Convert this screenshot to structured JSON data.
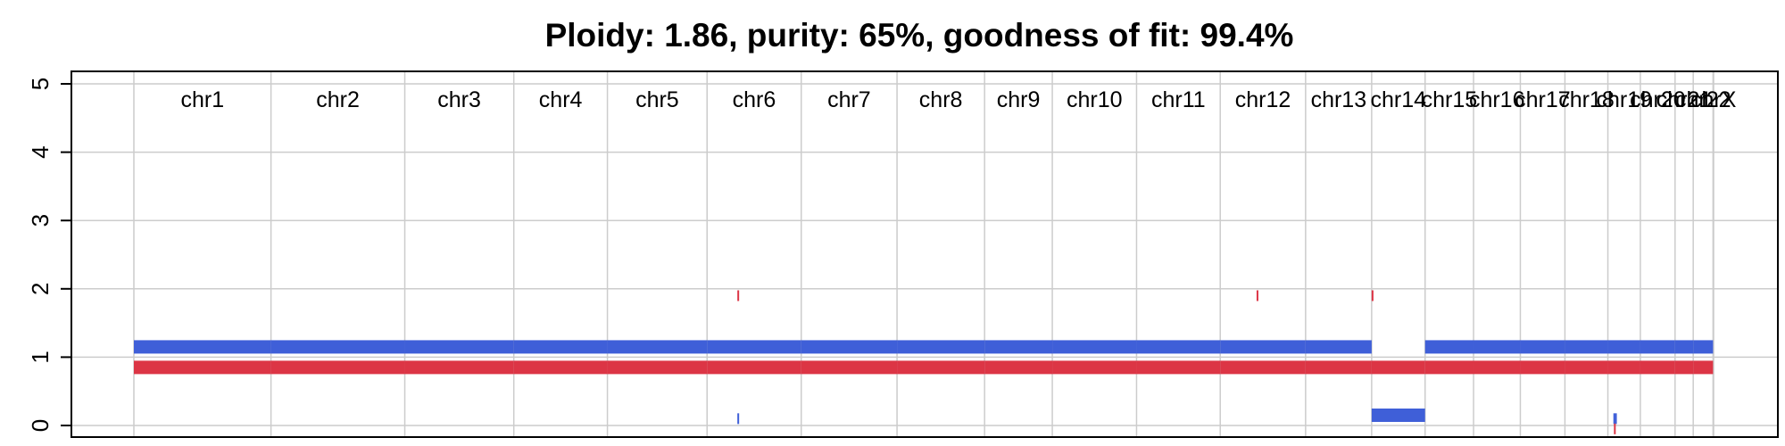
{
  "chart_data": {
    "type": "copy-number-profile",
    "title": "Ploidy: 1.86, purity: 65%, goodness of fit: 99.4%",
    "ylim": [
      0,
      5
    ],
    "yticks": [
      "0",
      "1",
      "2",
      "3",
      "4",
      "5"
    ],
    "grid": true,
    "colors": {
      "major": "#3f5fd8",
      "minor": "#dc3545",
      "grid": "#cccccc",
      "axis": "#000000"
    },
    "chromosomes": [
      {
        "name": "chr1",
        "length": 249
      },
      {
        "name": "chr2",
        "length": 243
      },
      {
        "name": "chr3",
        "length": 198
      },
      {
        "name": "chr4",
        "length": 170
      },
      {
        "name": "chr5",
        "length": 181
      },
      {
        "name": "chr6",
        "length": 171
      },
      {
        "name": "chr7",
        "length": 174
      },
      {
        "name": "chr8",
        "length": 159
      },
      {
        "name": "chr9",
        "length": 123
      },
      {
        "name": "chr10",
        "length": 153
      },
      {
        "name": "chr11",
        "length": 152
      },
      {
        "name": "chr12",
        "length": 155
      },
      {
        "name": "chr13",
        "length": 120
      },
      {
        "name": "chr14",
        "length": 97
      },
      {
        "name": "chr15",
        "length": 88
      },
      {
        "name": "chr16",
        "length": 85
      },
      {
        "name": "chr17",
        "length": 81
      },
      {
        "name": "chr18",
        "length": 78
      },
      {
        "name": "chr19",
        "length": 59
      },
      {
        "name": "chr20",
        "length": 63
      },
      {
        "name": "chr21",
        "length": 33
      },
      {
        "name": "chr22",
        "length": 36
      },
      {
        "name": "chrX",
        "length": 1
      }
    ],
    "series": [
      {
        "role": "major",
        "segments": [
          {
            "chr": "chr1",
            "start": 0,
            "end": 249,
            "value": 1.15
          },
          {
            "chr": "chr2",
            "start": 0,
            "end": 243,
            "value": 1.15
          },
          {
            "chr": "chr3",
            "start": 0,
            "end": 198,
            "value": 1.15
          },
          {
            "chr": "chr4",
            "start": 0,
            "end": 170,
            "value": 1.15
          },
          {
            "chr": "chr5",
            "start": 0,
            "end": 181,
            "value": 1.15
          },
          {
            "chr": "chr6",
            "start": 0,
            "end": 171,
            "value": 1.15
          },
          {
            "chr": "chr7",
            "start": 0,
            "end": 174,
            "value": 1.15
          },
          {
            "chr": "chr8",
            "start": 0,
            "end": 159,
            "value": 1.15
          },
          {
            "chr": "chr9",
            "start": 0,
            "end": 123,
            "value": 1.15
          },
          {
            "chr": "chr10",
            "start": 0,
            "end": 153,
            "value": 1.15
          },
          {
            "chr": "chr11",
            "start": 0,
            "end": 152,
            "value": 1.15
          },
          {
            "chr": "chr12",
            "start": 0,
            "end": 155,
            "value": 1.15
          },
          {
            "chr": "chr13",
            "start": 0,
            "end": 120,
            "value": 1.15
          },
          {
            "chr": "chr14",
            "start": 0,
            "end": 97,
            "value": 0.15
          },
          {
            "chr": "chr15",
            "start": 0,
            "end": 88,
            "value": 1.15
          },
          {
            "chr": "chr16",
            "start": 0,
            "end": 85,
            "value": 1.15
          },
          {
            "chr": "chr17",
            "start": 0,
            "end": 81,
            "value": 1.15
          },
          {
            "chr": "chr18",
            "start": 0,
            "end": 78,
            "value": 1.15
          },
          {
            "chr": "chr19",
            "start": 0,
            "end": 59,
            "value": 1.15
          },
          {
            "chr": "chr20",
            "start": 0,
            "end": 63,
            "value": 1.15
          },
          {
            "chr": "chr21",
            "start": 0,
            "end": 33,
            "value": 1.15
          },
          {
            "chr": "chr22",
            "start": 0,
            "end": 36,
            "value": 1.15
          },
          {
            "chr": "chr6",
            "start": 55,
            "end": 56,
            "value": 0.1
          },
          {
            "chr": "chr19",
            "start": 10,
            "end": 11,
            "value": 0.1
          },
          {
            "chr": "chr19",
            "start": 13,
            "end": 14,
            "value": 0.1
          }
        ]
      },
      {
        "role": "minor",
        "segments": [
          {
            "chr": "chr1",
            "start": 0,
            "end": 249,
            "value": 0.85
          },
          {
            "chr": "chr2",
            "start": 0,
            "end": 243,
            "value": 0.85
          },
          {
            "chr": "chr3",
            "start": 0,
            "end": 198,
            "value": 0.85
          },
          {
            "chr": "chr4",
            "start": 0,
            "end": 170,
            "value": 0.85
          },
          {
            "chr": "chr5",
            "start": 0,
            "end": 181,
            "value": 0.85
          },
          {
            "chr": "chr6",
            "start": 0,
            "end": 171,
            "value": 0.85
          },
          {
            "chr": "chr7",
            "start": 0,
            "end": 174,
            "value": 0.85
          },
          {
            "chr": "chr8",
            "start": 0,
            "end": 159,
            "value": 0.85
          },
          {
            "chr": "chr9",
            "start": 0,
            "end": 123,
            "value": 0.85
          },
          {
            "chr": "chr10",
            "start": 0,
            "end": 153,
            "value": 0.85
          },
          {
            "chr": "chr11",
            "start": 0,
            "end": 152,
            "value": 0.85
          },
          {
            "chr": "chr12",
            "start": 0,
            "end": 155,
            "value": 0.85
          },
          {
            "chr": "chr13",
            "start": 0,
            "end": 120,
            "value": 0.85
          },
          {
            "chr": "chr14",
            "start": 0,
            "end": 97,
            "value": 0.85
          },
          {
            "chr": "chr15",
            "start": 0,
            "end": 88,
            "value": 0.85
          },
          {
            "chr": "chr16",
            "start": 0,
            "end": 85,
            "value": 0.85
          },
          {
            "chr": "chr17",
            "start": 0,
            "end": 81,
            "value": 0.85
          },
          {
            "chr": "chr18",
            "start": 0,
            "end": 78,
            "value": 0.85
          },
          {
            "chr": "chr19",
            "start": 0,
            "end": 59,
            "value": 0.85
          },
          {
            "chr": "chr20",
            "start": 0,
            "end": 63,
            "value": 0.85
          },
          {
            "chr": "chr21",
            "start": 0,
            "end": 33,
            "value": 0.85
          },
          {
            "chr": "chr22",
            "start": 0,
            "end": 36,
            "value": 0.85
          },
          {
            "chr": "chr6",
            "start": 55,
            "end": 56,
            "value": 1.9
          },
          {
            "chr": "chr12",
            "start": 66,
            "end": 68,
            "value": 1.9
          },
          {
            "chr": "chr14",
            "start": 0,
            "end": 1,
            "value": 1.9
          },
          {
            "chr": "chr19",
            "start": 11,
            "end": 12,
            "value": -0.05
          }
        ]
      }
    ]
  }
}
